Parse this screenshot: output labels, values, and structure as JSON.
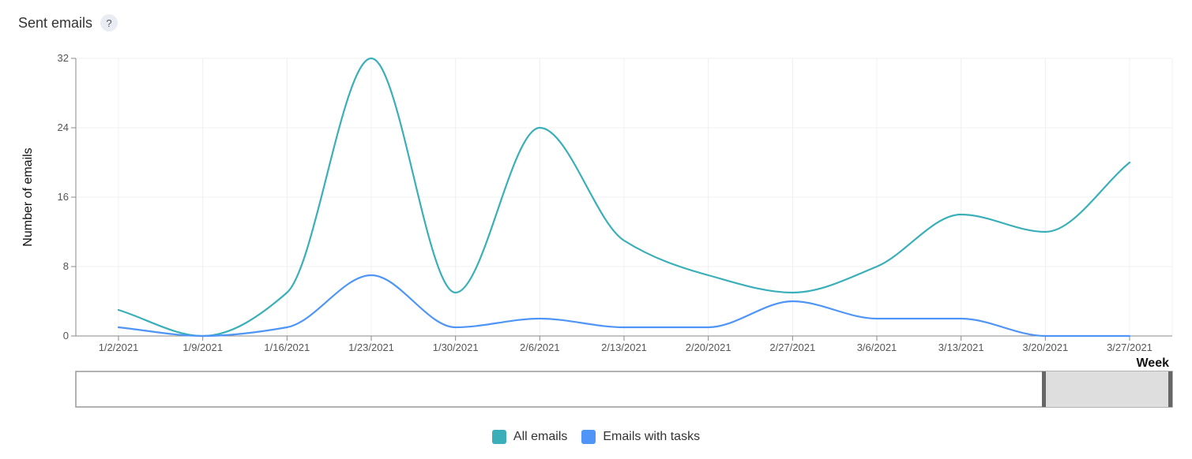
{
  "header": {
    "title": "Sent emails",
    "help_label": "?"
  },
  "colors": {
    "all_emails": "#3aafb9",
    "emails_with_tasks": "#4f95f7"
  },
  "chart_data": {
    "type": "line",
    "title": "",
    "xlabel": "Week",
    "ylabel": "Number of emails",
    "categories": [
      "1/2/2021",
      "1/9/2021",
      "1/16/2021",
      "1/23/2021",
      "1/30/2021",
      "2/6/2021",
      "2/13/2021",
      "2/20/2021",
      "2/27/2021",
      "3/6/2021",
      "3/13/2021",
      "3/20/2021",
      "3/27/2021"
    ],
    "ylim": [
      0,
      32
    ],
    "yticks": [
      0,
      8,
      16,
      24,
      32
    ],
    "grid": true,
    "legend_placement": "bottom-center",
    "series": [
      {
        "name": "All emails",
        "color": "#3aafb9",
        "values": [
          3,
          0,
          5,
          32,
          5,
          24,
          11,
          7,
          5,
          8,
          14,
          12,
          20
        ]
      },
      {
        "name": "Emails with tasks",
        "color": "#4f95f7",
        "values": [
          1,
          0,
          1,
          7,
          1,
          2,
          1,
          1,
          4,
          2,
          2,
          0,
          0
        ]
      }
    ]
  }
}
